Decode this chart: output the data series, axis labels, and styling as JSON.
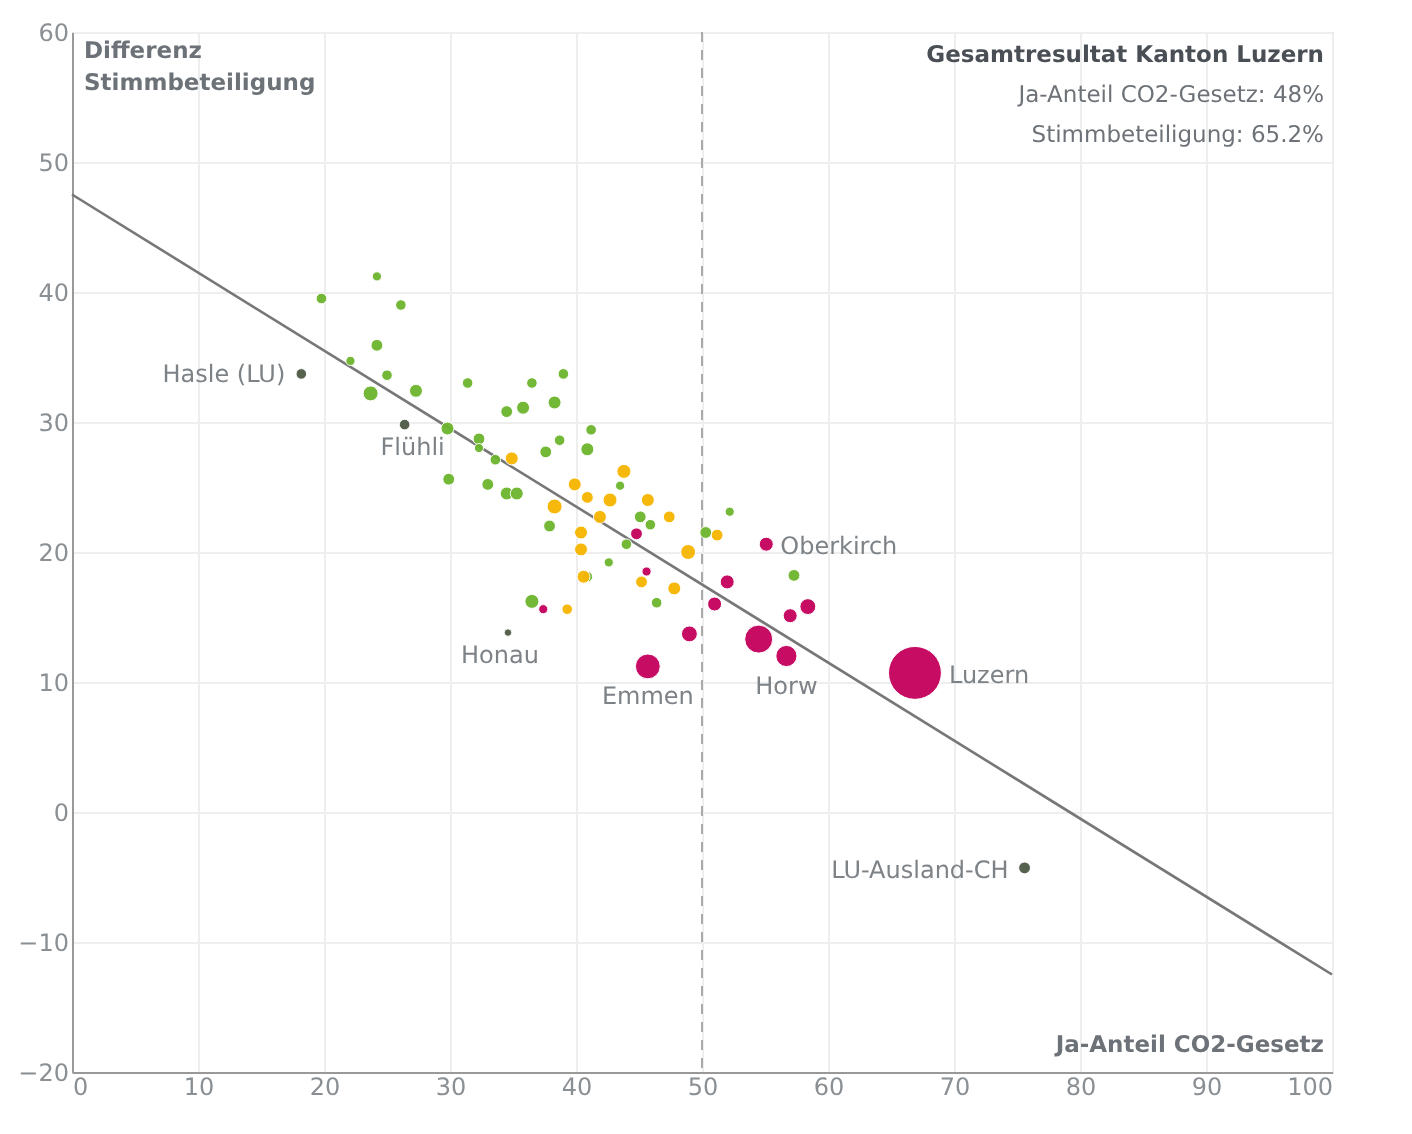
{
  "chart_data": {
    "type": "bubble",
    "xlabel": "Ja-Anteil CO2-Gesetz",
    "ylabel": "Differenz Stimmbeteiligung",
    "xlim": [
      0,
      100
    ],
    "xticks": [
      0,
      10,
      20,
      30,
      40,
      50,
      60,
      70,
      80,
      90,
      100
    ],
    "ylim": [
      -20,
      60
    ],
    "yticks": [
      -20,
      -10,
      0,
      10,
      20,
      30,
      40,
      50,
      60
    ],
    "grid": true,
    "ref_lines": [
      {
        "axis": "x",
        "value": 50,
        "color": "#aaaaaa",
        "line_style": "dashed"
      }
    ],
    "annotations": [
      "Gesamtresultat Kanton Luzern",
      "Ja-Anteil CO2-Gesetz: 48%",
      "Stimmbeteiligung: 65.2%",
      {
        "text": "Hasle (LU)",
        "x": 18.2,
        "y": 33.7
      },
      {
        "text": "Flühli",
        "x": 26.4,
        "y": 29.8
      },
      {
        "text": "Honau",
        "x": 34.6,
        "y": 13.8
      },
      {
        "text": "Emmen",
        "x": 45.7,
        "y": 11.2
      },
      {
        "text": "Horw",
        "x": 56.7,
        "y": 12.0
      },
      {
        "text": "Oberkirch",
        "x": 55.1,
        "y": 20.6
      },
      {
        "text": "Luzern",
        "x": 66.9,
        "y": 10.7
      },
      {
        "text": "LU-Ausland-CH",
        "x": 75.6,
        "y": -4.3
      }
    ],
    "series": [
      {
        "type": "line",
        "line_style": "solid",
        "color": "#777777",
        "x": [
          0,
          100
        ],
        "values": [
          47.5,
          -12.5
        ]
      },
      {
        "color": "#6cb52d",
        "x": [
          19.8,
          24.2,
          26.1,
          24.2,
          22.1,
          25.0,
          23.7,
          27.3,
          31.4,
          36.5,
          39.0,
          34.5,
          35.8,
          38.3,
          29.8,
          32.3,
          32.3,
          33.6,
          37.6,
          38.7,
          41.2,
          40.9,
          29.9,
          33.0,
          34.5,
          35.3,
          37.9,
          43.5,
          45.1,
          45.9,
          44.0,
          42.6,
          40.9,
          46.4,
          36.5,
          50.3,
          52.2,
          57.3
        ],
        "values": [
          39.5,
          41.2,
          39.0,
          35.9,
          34.7,
          33.6,
          32.2,
          32.4,
          33.0,
          33.0,
          33.7,
          30.8,
          31.1,
          31.5,
          29.5,
          28.7,
          28.0,
          27.1,
          27.7,
          28.6,
          29.4,
          27.9,
          25.6,
          25.2,
          24.5,
          24.5,
          22.0,
          25.1,
          22.7,
          22.1,
          20.6,
          19.2,
          18.1,
          16.1,
          16.2,
          21.5,
          23.1,
          18.2
        ],
        "sizes": [
          0.04,
          0.03,
          0.04,
          0.05,
          0.03,
          0.04,
          0.08,
          0.06,
          0.04,
          0.04,
          0.04,
          0.05,
          0.06,
          0.06,
          0.06,
          0.05,
          0.03,
          0.04,
          0.05,
          0.04,
          0.04,
          0.06,
          0.05,
          0.05,
          0.06,
          0.06,
          0.05,
          0.03,
          0.05,
          0.04,
          0.04,
          0.03,
          0.04,
          0.04,
          0.07,
          0.05,
          0.03,
          0.05
        ]
      },
      {
        "color": "#f7b500",
        "x": [
          34.9,
          39.9,
          40.9,
          38.3,
          42.7,
          43.8,
          41.9,
          45.7,
          47.4,
          40.4,
          40.4,
          40.6,
          45.2,
          48.9,
          47.8,
          39.3,
          51.2
        ],
        "values": [
          27.2,
          25.2,
          24.2,
          23.5,
          24.0,
          26.2,
          22.7,
          24.0,
          22.7,
          21.5,
          20.2,
          18.1,
          17.7,
          20.0,
          17.2,
          15.6,
          21.3
        ],
        "sizes": [
          0.06,
          0.06,
          0.05,
          0.08,
          0.07,
          0.07,
          0.06,
          0.06,
          0.05,
          0.06,
          0.06,
          0.06,
          0.05,
          0.08,
          0.06,
          0.04,
          0.05
        ]
      },
      {
        "color": "#c3005b",
        "x": [
          37.4,
          44.8,
          45.6,
          52.0,
          51.0,
          49.0,
          45.7,
          54.5,
          56.7,
          57.0,
          58.4,
          55.1,
          66.9
        ],
        "values": [
          15.6,
          21.4,
          18.5,
          17.7,
          16.0,
          13.7,
          11.2,
          13.3,
          12.0,
          15.1,
          15.8,
          20.6,
          10.7
        ],
        "sizes": [
          0.03,
          0.05,
          0.03,
          0.07,
          0.07,
          0.09,
          0.22,
          0.28,
          0.16,
          0.07,
          0.09,
          0.07,
          1
        ]
      },
      {
        "color": "#4d5a45",
        "x": [
          18.2,
          26.4,
          34.6,
          75.6
        ],
        "values": [
          33.7,
          29.8,
          13.8,
          -4.3
        ],
        "sizes": [
          0.04,
          0.04,
          0.02,
          0.05
        ]
      }
    ]
  }
}
